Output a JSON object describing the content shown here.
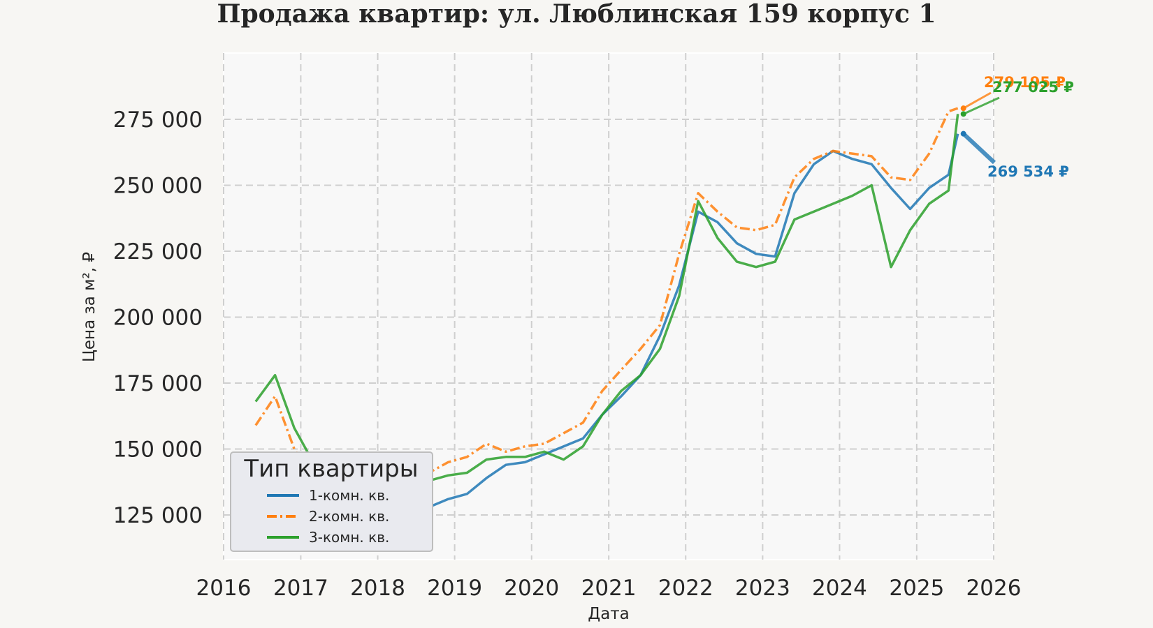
{
  "chart_data": {
    "type": "line",
    "title": "Продажа квартир: ул. Люблинская 159 корпус 1",
    "xlabel": "Дата",
    "ylabel": "Цена за м², ₽",
    "xlim": [
      "2016-01-01",
      "2026-01-01"
    ],
    "ylim": [
      107000,
      275000
    ],
    "x_ticks": [
      "2016",
      "2017",
      "2018",
      "2019",
      "2020",
      "2021",
      "2022",
      "2023",
      "2024",
      "2025",
      "2026"
    ],
    "y_ticks": [
      125000,
      150000,
      175000,
      200000,
      225000,
      250000,
      275000
    ],
    "y_tick_labels": [
      "125 000",
      "150 000",
      "175 000",
      "200 000",
      "225 000",
      "250 000",
      "275 000"
    ],
    "grid": true,
    "legend": {
      "title": "Тип квартиры",
      "placement": "lower-left"
    },
    "series": [
      {
        "name": "1-комн. кв.",
        "color": "#1f77b4",
        "style": "solid",
        "points": [
          [
            "2016-06-01",
            134000
          ],
          [
            "2016-09-01",
            133000
          ],
          [
            "2016-12-01",
            129000
          ],
          [
            "2017-03-01",
            125000
          ],
          [
            "2017-06-01",
            123000
          ],
          [
            "2017-09-01",
            122000
          ],
          [
            "2017-12-01",
            120000
          ],
          [
            "2018-03-01",
            119000
          ],
          [
            "2018-06-01",
            124000
          ],
          [
            "2018-09-01",
            128000
          ],
          [
            "2018-12-01",
            131000
          ],
          [
            "2019-03-01",
            133000
          ],
          [
            "2019-06-01",
            139000
          ],
          [
            "2019-09-01",
            144000
          ],
          [
            "2019-12-01",
            145000
          ],
          [
            "2020-03-01",
            148000
          ],
          [
            "2020-06-01",
            151000
          ],
          [
            "2020-09-01",
            154000
          ],
          [
            "2020-12-01",
            163000
          ],
          [
            "2021-03-01",
            170000
          ],
          [
            "2021-06-01",
            178000
          ],
          [
            "2021-09-01",
            193000
          ],
          [
            "2021-12-01",
            212000
          ],
          [
            "2022-03-01",
            240000
          ],
          [
            "2022-06-01",
            236000
          ],
          [
            "2022-09-01",
            228000
          ],
          [
            "2022-12-01",
            224000
          ],
          [
            "2023-03-01",
            223000
          ],
          [
            "2023-06-01",
            247000
          ],
          [
            "2023-09-01",
            258000
          ],
          [
            "2023-12-01",
            263000
          ],
          [
            "2024-03-01",
            260000
          ],
          [
            "2024-06-01",
            258000
          ],
          [
            "2024-09-01",
            249000
          ],
          [
            "2024-12-01",
            241000
          ],
          [
            "2025-03-01",
            249000
          ],
          [
            "2025-06-01",
            254000
          ],
          [
            "2025-07-15",
            269534
          ]
        ]
      },
      {
        "name": "2-комн. кв.",
        "color": "#ff7f0e",
        "style": "dashdot",
        "points": [
          [
            "2016-06-01",
            159000
          ],
          [
            "2016-09-01",
            170000
          ],
          [
            "2016-12-01",
            150000
          ],
          [
            "2017-03-01",
            139000
          ],
          [
            "2017-06-01",
            138000
          ],
          [
            "2017-09-01",
            137000
          ],
          [
            "2017-12-01",
            134000
          ],
          [
            "2018-03-01",
            133000
          ],
          [
            "2018-06-01",
            137000
          ],
          [
            "2018-09-01",
            141000
          ],
          [
            "2018-12-01",
            145000
          ],
          [
            "2019-03-01",
            147000
          ],
          [
            "2019-06-01",
            152000
          ],
          [
            "2019-09-01",
            149000
          ],
          [
            "2019-12-01",
            151000
          ],
          [
            "2020-03-01",
            152000
          ],
          [
            "2020-06-01",
            156000
          ],
          [
            "2020-09-01",
            160000
          ],
          [
            "2020-12-01",
            172000
          ],
          [
            "2021-03-01",
            180000
          ],
          [
            "2021-06-01",
            188000
          ],
          [
            "2021-09-01",
            197000
          ],
          [
            "2021-12-01",
            224000
          ],
          [
            "2022-03-01",
            247000
          ],
          [
            "2022-06-01",
            240000
          ],
          [
            "2022-09-01",
            234000
          ],
          [
            "2022-12-01",
            233000
          ],
          [
            "2023-03-01",
            235000
          ],
          [
            "2023-06-01",
            253000
          ],
          [
            "2023-09-01",
            260000
          ],
          [
            "2023-12-01",
            263000
          ],
          [
            "2024-03-01",
            262000
          ],
          [
            "2024-06-01",
            261000
          ],
          [
            "2024-09-01",
            253000
          ],
          [
            "2024-12-01",
            252000
          ],
          [
            "2025-03-01",
            262000
          ],
          [
            "2025-06-01",
            278000
          ],
          [
            "2025-07-15",
            279195
          ]
        ]
      },
      {
        "name": "3-комн. кв.",
        "color": "#2ca02c",
        "style": "solid",
        "points": [
          [
            "2016-06-01",
            168000
          ],
          [
            "2016-09-01",
            178000
          ],
          [
            "2016-12-01",
            158000
          ],
          [
            "2017-03-01",
            145000
          ],
          [
            "2017-06-01",
            141000
          ],
          [
            "2017-09-01",
            138000
          ],
          [
            "2017-12-01",
            134000
          ],
          [
            "2018-03-01",
            132000
          ],
          [
            "2018-06-01",
            135000
          ],
          [
            "2018-09-01",
            138000
          ],
          [
            "2018-12-01",
            140000
          ],
          [
            "2019-03-01",
            141000
          ],
          [
            "2019-06-01",
            146000
          ],
          [
            "2019-09-01",
            147000
          ],
          [
            "2019-12-01",
            147000
          ],
          [
            "2020-03-01",
            149000
          ],
          [
            "2020-06-01",
            146000
          ],
          [
            "2020-09-01",
            151000
          ],
          [
            "2020-12-01",
            163000
          ],
          [
            "2021-03-01",
            172000
          ],
          [
            "2021-06-01",
            178000
          ],
          [
            "2021-09-01",
            188000
          ],
          [
            "2021-12-01",
            208000
          ],
          [
            "2022-03-01",
            244000
          ],
          [
            "2022-06-01",
            230000
          ],
          [
            "2022-09-01",
            221000
          ],
          [
            "2022-12-01",
            219000
          ],
          [
            "2023-03-01",
            221000
          ],
          [
            "2023-06-01",
            237000
          ],
          [
            "2023-09-01",
            240000
          ],
          [
            "2023-12-01",
            243000
          ],
          [
            "2024-03-01",
            246000
          ],
          [
            "2024-06-01",
            250000
          ],
          [
            "2024-09-01",
            219000
          ],
          [
            "2024-12-01",
            233000
          ],
          [
            "2025-03-01",
            243000
          ],
          [
            "2025-06-01",
            248000
          ],
          [
            "2025-07-15",
            277025
          ]
        ]
      }
    ],
    "annotations": [
      {
        "text": "279 195 ₽",
        "series": "2-комн. кв.",
        "color": "#ff7f0e"
      },
      {
        "text": "277 025 ₽",
        "series": "3-комн. кв.",
        "color": "#2ca02c"
      },
      {
        "text": "269 534 ₽",
        "series": "1-комн. кв.",
        "color": "#1f77b4"
      }
    ]
  }
}
